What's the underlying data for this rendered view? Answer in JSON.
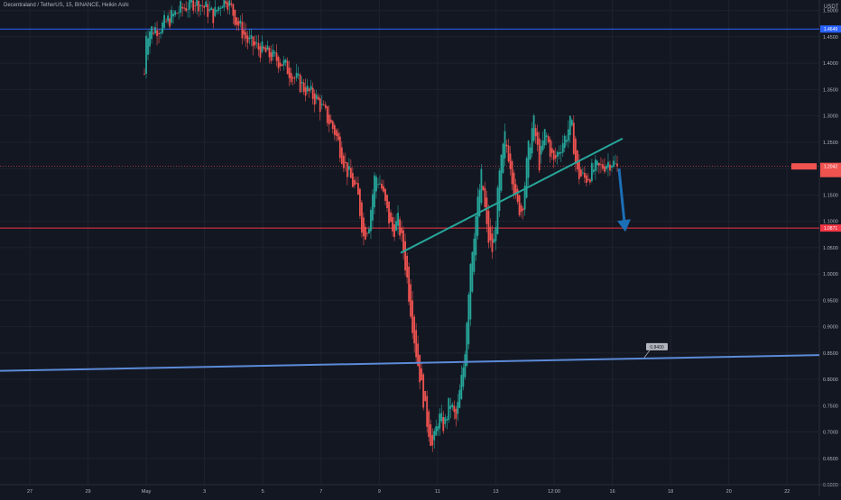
{
  "legend": {
    "symbol_text": "Decentraland / TetherUS, 15, BINANCE, Heikin Ashi"
  },
  "price_axis": {
    "currency": "USDT"
  },
  "colors": {
    "background": "#131722",
    "up": "#26a69a",
    "down": "#ef5350",
    "grid": "#1e222d",
    "axis_text": "#b2b5be",
    "resistance_line": "#2962ff",
    "support_line": "#f23645",
    "trendline": "#26a69a",
    "long_support": "#5b8bd8",
    "arrow": "#1c6fb5"
  },
  "chart_data": {
    "type": "candlestick",
    "chart_style": "Heikin Ashi",
    "symbol": "Decentraland / TetherUS",
    "interval": "15",
    "exchange": "BINANCE",
    "quote_currency": "USDT",
    "grid": true,
    "y_axis": {
      "range": [
        0.6,
        1.52
      ],
      "tick_labels": [
        "1.5000",
        "1.4500",
        "1.4000",
        "1.3500",
        "1.3000",
        "1.2500",
        "1.2000",
        "1.1500",
        "1.1000",
        "1.0500",
        "1.0000",
        "0.9500",
        "0.9000",
        "0.8500",
        "0.8000",
        "0.7500",
        "0.7000",
        "0.6500",
        "0.6000"
      ],
      "tick_values": [
        1.5,
        1.45,
        1.4,
        1.35,
        1.3,
        1.25,
        1.2,
        1.15,
        1.1,
        1.05,
        1.0,
        0.95,
        0.9,
        0.85,
        0.8,
        0.75,
        0.7,
        0.65,
        0.6
      ]
    },
    "x_axis": {
      "tick_labels": [
        "27",
        "29",
        "May",
        "3",
        "5",
        "7",
        "9",
        "11",
        "13",
        "12:00",
        "16",
        "18",
        "20",
        "22"
      ]
    },
    "price_path": [
      [
        0,
        1.38
      ],
      [
        0,
        1.46
      ],
      [
        0.03,
        1.47
      ],
      [
        0.06,
        1.5
      ],
      [
        0.09,
        1.52
      ],
      [
        0.12,
        1.49
      ],
      [
        0.14,
        1.53
      ],
      [
        0.16,
        1.48
      ],
      [
        0.18,
        1.44
      ],
      [
        0.21,
        1.42
      ],
      [
        0.24,
        1.4
      ],
      [
        0.27,
        1.36
      ],
      [
        0.3,
        1.33
      ],
      [
        0.33,
        1.27
      ],
      [
        0.35,
        1.2
      ],
      [
        0.37,
        1.15
      ],
      [
        0.38,
        1.07
      ],
      [
        0.39,
        1.1
      ],
      [
        0.4,
        1.19
      ],
      [
        0.41,
        1.17
      ],
      [
        0.42,
        1.12
      ],
      [
        0.43,
        1.08
      ],
      [
        0.44,
        1.1
      ],
      [
        0.45,
        1.04
      ],
      [
        0.46,
        0.95
      ],
      [
        0.47,
        0.86
      ],
      [
        0.48,
        0.79
      ],
      [
        0.49,
        0.72
      ],
      [
        0.5,
        0.67
      ],
      [
        0.51,
        0.73
      ],
      [
        0.52,
        0.71
      ],
      [
        0.53,
        0.76
      ],
      [
        0.54,
        0.72
      ],
      [
        0.55,
        0.8
      ],
      [
        0.555,
        0.84
      ],
      [
        0.565,
        1.02
      ],
      [
        0.575,
        1.11
      ],
      [
        0.585,
        1.19
      ],
      [
        0.595,
        1.07
      ],
      [
        0.605,
        1.04
      ],
      [
        0.615,
        1.18
      ],
      [
        0.625,
        1.26
      ],
      [
        0.635,
        1.21
      ],
      [
        0.645,
        1.13
      ],
      [
        0.655,
        1.12
      ],
      [
        0.665,
        1.23
      ],
      [
        0.675,
        1.29
      ],
      [
        0.685,
        1.21
      ],
      [
        0.695,
        1.27
      ],
      [
        0.71,
        1.21
      ],
      [
        0.72,
        1.24
      ],
      [
        0.73,
        1.26
      ],
      [
        0.74,
        1.29
      ],
      [
        0.75,
        1.19
      ],
      [
        0.765,
        1.18
      ],
      [
        0.78,
        1.2
      ],
      [
        0.79,
        1.2
      ],
      [
        0.8,
        1.21
      ],
      [
        0.81,
        1.215
      ],
      [
        0.82,
        1.2
      ]
    ],
    "horizontal_levels": [
      {
        "price": 1.4649,
        "style": "resistance"
      },
      {
        "price": 1.0871,
        "style": "support"
      }
    ],
    "current_price_marker": {
      "price": 1.2042
    },
    "trendline": {
      "from": [
        0.39,
        1.04
      ],
      "to": [
        0.74,
        1.257
      ]
    },
    "long_support_line": {
      "from": [
        0.0,
        0.816
      ],
      "to": [
        1.0,
        0.846
      ],
      "label": "0.8400"
    },
    "projection_arrow": {
      "from": [
        0.73,
        1.2
      ],
      "to": [
        0.75,
        1.08
      ]
    }
  }
}
